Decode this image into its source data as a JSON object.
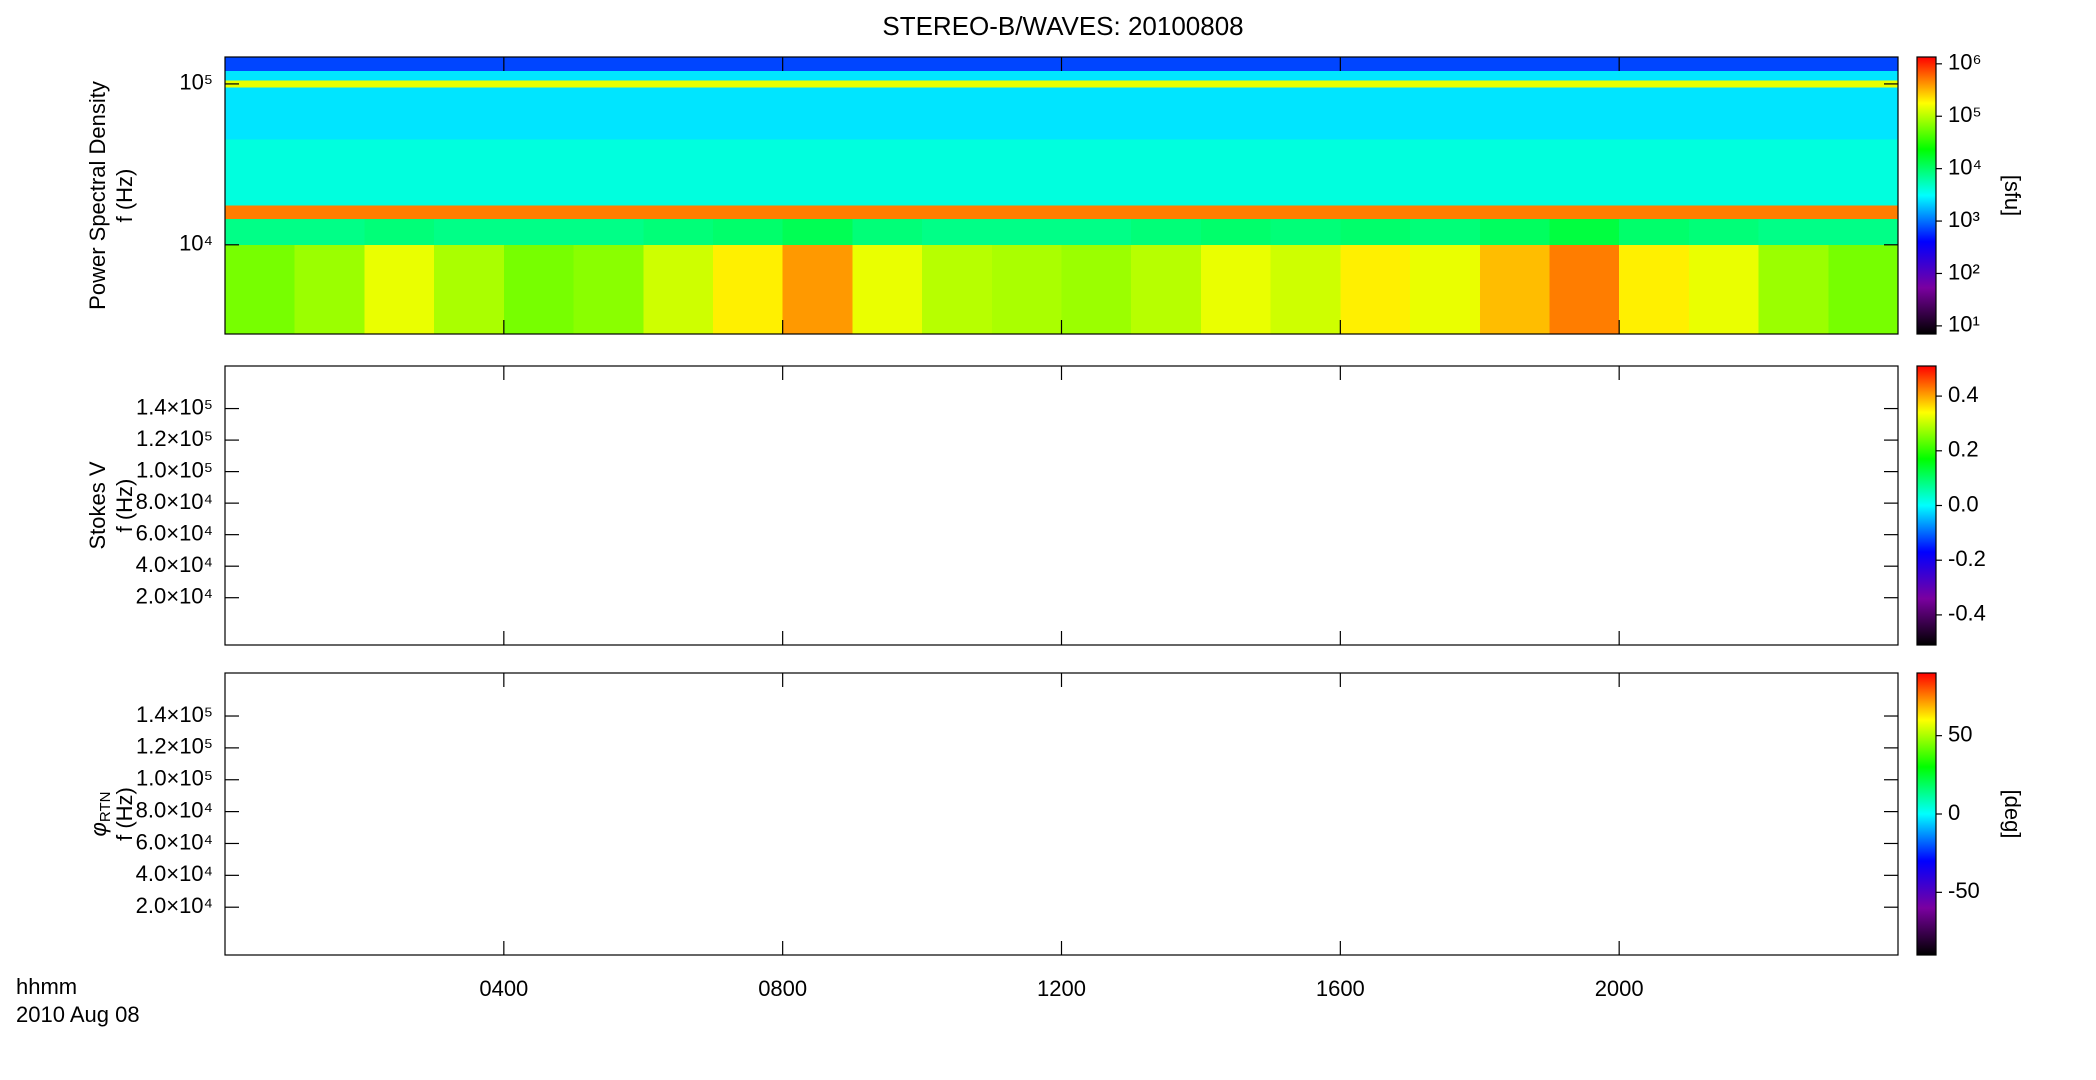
{
  "chart_data": [
    {
      "type": "heatmap",
      "title": "STEREO-B/WAVES: 20100808",
      "ylabel": [
        "Power Spectral Density",
        "f (Hz)"
      ],
      "yscale": "log",
      "ylim": [
        2790,
        147000
      ],
      "yticks": [
        {
          "value": 10000,
          "label": "10⁴"
        },
        {
          "value": 100000,
          "label": "10⁵"
        }
      ],
      "xlim": [
        0,
        24
      ],
      "xticks": [
        4,
        8,
        12,
        16,
        20
      ],
      "xbins": [
        0,
        1,
        2,
        3,
        4,
        5,
        6,
        7,
        8,
        9,
        10,
        11,
        12,
        13,
        14,
        15,
        16,
        17,
        18,
        19,
        20,
        21,
        22,
        23,
        24
      ],
      "ybins": [
        2790,
        10000,
        14500,
        17500,
        45000,
        95000,
        105000,
        120000,
        147000
      ],
      "values": [
        [
          60000,
          80000,
          150000,
          90000,
          60000,
          70000,
          120000,
          200000,
          400000,
          150000,
          100000,
          90000,
          80000,
          100000,
          150000,
          120000,
          200000,
          150000,
          300000,
          500000,
          200000,
          150000,
          80000,
          60000
        ],
        [
          8000,
          8000,
          9000,
          8000,
          8000,
          8000,
          9000,
          10000,
          12000,
          9000,
          8000,
          8000,
          8000,
          9000,
          10000,
          9000,
          10000,
          9000,
          11000,
          14000,
          10000,
          9000,
          8000,
          8000
        ],
        [
          500000,
          500000,
          500000,
          500000,
          500000,
          500000,
          500000,
          500000,
          500000,
          500000,
          500000,
          500000,
          500000,
          500000,
          500000,
          500000,
          500000,
          500000,
          500000,
          500000,
          500000,
          500000,
          500000,
          500000
        ],
        [
          4000,
          4000,
          4000,
          4000,
          4000,
          4000,
          4000,
          4000,
          4000,
          4000,
          4000,
          4000,
          4000,
          4000,
          4000,
          4000,
          4000,
          4000,
          4000,
          4000,
          4000,
          4000,
          4000,
          4000
        ],
        [
          2500,
          2500,
          2500,
          2500,
          2500,
          2500,
          2500,
          2500,
          2500,
          2500,
          2500,
          2500,
          2500,
          2500,
          2500,
          2500,
          2500,
          2500,
          2500,
          2500,
          2500,
          2500,
          2500,
          2500
        ],
        [
          150000,
          150000,
          150000,
          150000,
          150000,
          150000,
          150000,
          150000,
          150000,
          150000,
          150000,
          150000,
          150000,
          150000,
          150000,
          150000,
          150000,
          150000,
          150000,
          150000,
          150000,
          150000,
          150000,
          150000
        ],
        [
          2500,
          2500,
          2500,
          2500,
          2500,
          2500,
          2500,
          2500,
          2500,
          2500,
          2500,
          2500,
          2500,
          2500,
          2500,
          2500,
          2500,
          2500,
          2500,
          2500,
          2500,
          2500,
          2500,
          2500
        ],
        [
          700,
          700,
          700,
          700,
          700,
          700,
          700,
          700,
          700,
          700,
          700,
          700,
          700,
          700,
          700,
          700,
          700,
          700,
          700,
          700,
          700,
          700,
          700,
          700
        ]
      ],
      "colormap": [
        "#000000",
        "#7a00a0",
        "#0000ff",
        "#00ffff",
        "#00ff00",
        "#ffff00",
        "#ff0000"
      ],
      "zscale": "log",
      "zlim": [
        7,
        1350000
      ],
      "zlabel": "[sfu]",
      "zticks": [
        {
          "value": 10,
          "label": "10¹"
        },
        {
          "value": 100,
          "label": "10²"
        },
        {
          "value": 1000,
          "label": "10³"
        },
        {
          "value": 10000,
          "label": "10⁴"
        },
        {
          "value": 100000,
          "label": "10⁵"
        },
        {
          "value": 1000000,
          "label": "10⁶"
        }
      ]
    },
    {
      "type": "heatmap",
      "ylabel": [
        "Stokes V",
        "f (Hz)"
      ],
      "ylim": [
        -10000,
        167000
      ],
      "yticks": [
        {
          "value": 20000,
          "label": "2.0×10⁴"
        },
        {
          "value": 40000,
          "label": "4.0×10⁴"
        },
        {
          "value": 60000,
          "label": "6.0×10⁴"
        },
        {
          "value": 80000,
          "label": "8.0×10⁴"
        },
        {
          "value": 100000,
          "label": "1.0×10⁵"
        },
        {
          "value": 120000,
          "label": "1.2×10⁵"
        },
        {
          "value": 140000,
          "label": "1.4×10⁵"
        }
      ],
      "xlim": [
        0,
        24
      ],
      "xticks": [
        4,
        8,
        12,
        16,
        20
      ],
      "colormap": [
        "#000000",
        "#7a00a0",
        "#0000ff",
        "#00ffff",
        "#00ff00",
        "#ffff00",
        "#ff0000"
      ],
      "zlim": [
        -0.51,
        0.51
      ],
      "zticks": [
        -0.4,
        -0.2,
        {
          "value": 0,
          "label": "0.0"
        },
        0.2,
        0.4
      ]
    },
    {
      "type": "heatmap",
      "ylabel_symbol": "φ",
      "ylabel_sub": "RTN",
      "ylabel": [
        "f (Hz)"
      ],
      "ylim": [
        -10000,
        167000
      ],
      "yticks": [
        {
          "value": 20000,
          "label": "2.0×10⁴"
        },
        {
          "value": 40000,
          "label": "4.0×10⁴"
        },
        {
          "value": 60000,
          "label": "6.0×10⁴"
        },
        {
          "value": 80000,
          "label": "8.0×10⁴"
        },
        {
          "value": 100000,
          "label": "1.0×10⁵"
        },
        {
          "value": 120000,
          "label": "1.2×10⁵"
        },
        {
          "value": 140000,
          "label": "1.4×10⁵"
        }
      ],
      "xlim": [
        0,
        24
      ],
      "xticks": [
        {
          "value": 4,
          "label": "0400"
        },
        {
          "value": 8,
          "label": "0800"
        },
        {
          "value": 12,
          "label": "1200"
        },
        {
          "value": 16,
          "label": "1600"
        },
        {
          "value": 20,
          "label": "2000"
        }
      ],
      "xlabel": [
        "hhmm",
        "2010 Aug 08"
      ],
      "colormap": [
        "#000000",
        "#7a00a0",
        "#0000ff",
        "#00ffff",
        "#00ff00",
        "#ffff00",
        "#ff0000"
      ],
      "zlim": [
        -90,
        90
      ],
      "zlabel": "[deg]",
      "zticks": [
        -50,
        0,
        50
      ]
    }
  ]
}
